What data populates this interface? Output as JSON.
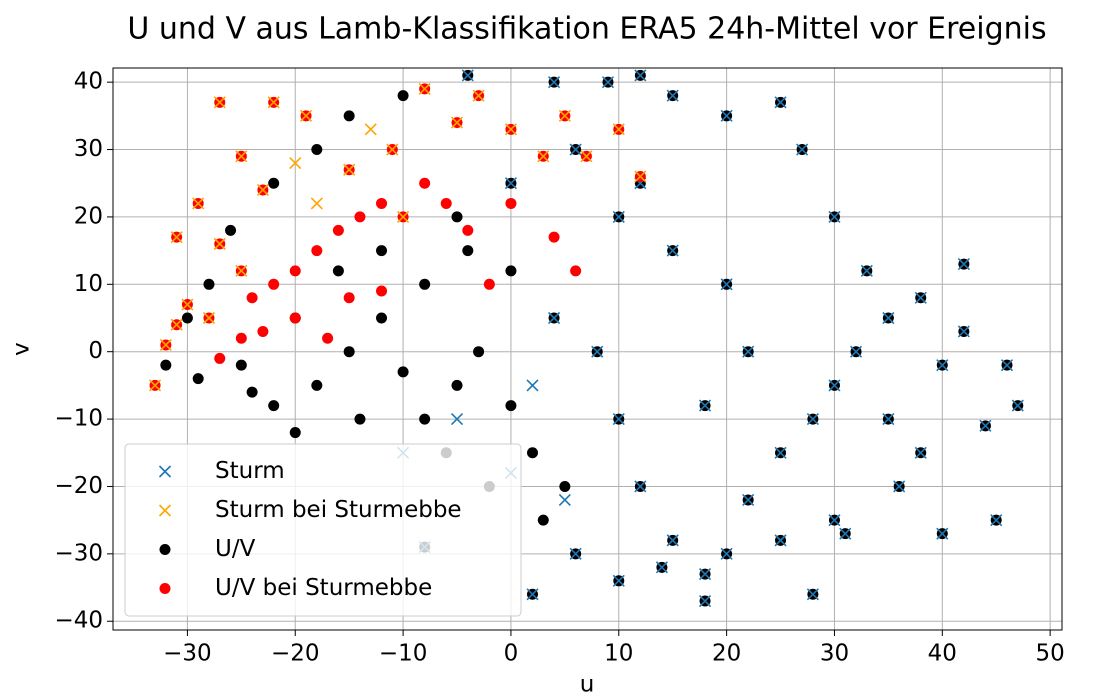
{
  "chart_data": {
    "type": "scatter",
    "title": "U und V aus Lamb-Klassifikation ERA5 24h-Mittel vor Ereignis",
    "xlabel": "u",
    "ylabel": "v",
    "xlim": [
      -36.9,
      51.1
    ],
    "ylim": [
      -41.3,
      42.1
    ],
    "xticks": [
      {
        "value": -30,
        "label": "−30"
      },
      {
        "value": -20,
        "label": "−20"
      },
      {
        "value": -10,
        "label": "−10"
      },
      0,
      10,
      20,
      30,
      40,
      50
    ],
    "yticks": [
      {
        "value": -40,
        "label": "−40"
      },
      {
        "value": -30,
        "label": "−30"
      },
      {
        "value": -20,
        "label": "−20"
      },
      {
        "value": -10,
        "label": "−10"
      },
      0,
      10,
      20,
      30,
      40
    ],
    "grid": true,
    "legend": "lower left",
    "series": [
      {
        "name": "U/V",
        "color": "#000000",
        "marker": "o",
        "x": [
          -25,
          -22,
          -20,
          -18,
          -15,
          -12,
          -10,
          -8,
          -5,
          -3,
          0,
          2,
          5,
          3,
          -2,
          -6,
          -14,
          -20,
          -16,
          -12,
          -8,
          -4,
          0,
          4,
          8,
          10,
          12,
          15,
          18,
          20,
          22,
          25,
          28,
          30,
          32,
          35,
          38,
          40,
          42,
          44,
          47,
          45,
          40,
          36,
          30,
          28,
          18,
          10,
          6,
          14,
          25,
          33,
          30,
          27,
          25,
          20,
          15,
          12,
          9,
          4,
          -4,
          -10,
          -15,
          -18,
          -22,
          -26,
          -28,
          -30,
          -32,
          -29,
          -24,
          10,
          15,
          20,
          22,
          18,
          12,
          6,
          0,
          -5,
          35,
          38,
          42,
          46,
          31,
          -8,
          2
        ],
        "values": [
          -2,
          -8,
          -12,
          -5,
          0,
          5,
          -3,
          -10,
          -5,
          0,
          -8,
          -15,
          -20,
          -25,
          -20,
          -15,
          -10,
          5,
          12,
          15,
          10,
          15,
          12,
          5,
          0,
          -10,
          -20,
          -28,
          -33,
          -30,
          -22,
          -15,
          -10,
          -5,
          0,
          5,
          8,
          -2,
          3,
          -11,
          -8,
          -25,
          -27,
          -20,
          -25,
          -36,
          -37,
          -34,
          -30,
          -32,
          -28,
          12,
          20,
          30,
          37,
          35,
          38,
          41,
          40,
          40,
          41,
          38,
          35,
          30,
          25,
          18,
          10,
          5,
          -2,
          -4,
          -6,
          20,
          15,
          10,
          0,
          -8,
          25,
          30,
          25,
          20,
          -10,
          -15,
          13,
          -2,
          -27,
          -29,
          -36
        ]
      },
      {
        "name": "Sturm",
        "color": "#1f77b4",
        "marker": "x",
        "x": [
          4,
          8,
          10,
          12,
          15,
          18,
          20,
          22,
          25,
          28,
          30,
          32,
          35,
          38,
          40,
          42,
          44,
          47,
          45,
          40,
          36,
          30,
          28,
          18,
          10,
          6,
          14,
          25,
          33,
          30,
          27,
          25,
          20,
          15,
          12,
          9,
          4,
          -4,
          10,
          15,
          20,
          22,
          18,
          12,
          6,
          0,
          35,
          38,
          42,
          46,
          31,
          -8,
          2,
          -10,
          -5,
          0,
          5,
          2
        ],
        "values": [
          5,
          0,
          -10,
          -20,
          -28,
          -33,
          -30,
          -22,
          -15,
          -10,
          -5,
          0,
          5,
          8,
          -2,
          3,
          -11,
          -8,
          -25,
          -27,
          -20,
          -25,
          -36,
          -37,
          -34,
          -30,
          -32,
          -28,
          12,
          20,
          30,
          37,
          35,
          38,
          41,
          40,
          40,
          41,
          20,
          15,
          10,
          0,
          -8,
          25,
          30,
          25,
          -10,
          -15,
          13,
          -2,
          -27,
          -29,
          -36,
          -15,
          -10,
          -18,
          -22,
          -5
        ]
      },
      {
        "name": "U/V bei Sturmebbe",
        "color": "#ff0000",
        "marker": "o",
        "x": [
          -33,
          -32,
          -31,
          -30,
          -28,
          -27,
          -25,
          -24,
          -22,
          -20,
          -18,
          -16,
          -14,
          -12,
          -10,
          -8,
          -6,
          -4,
          -2,
          0,
          4,
          6,
          -12,
          -15,
          -17,
          -20,
          -23,
          -25,
          -27,
          -29,
          -31,
          -27,
          -22,
          -19,
          -8,
          -3,
          5,
          10,
          12,
          7,
          -15,
          -11,
          -23,
          -25,
          -5,
          0,
          3
        ],
        "values": [
          -5,
          1,
          4,
          7,
          5,
          -1,
          2,
          8,
          10,
          12,
          15,
          18,
          20,
          22,
          20,
          25,
          22,
          18,
          10,
          22,
          17,
          12,
          9,
          8,
          2,
          5,
          3,
          12,
          16,
          22,
          17,
          37,
          37,
          35,
          39,
          38,
          35,
          33,
          26,
          29,
          27,
          30,
          24,
          29,
          34,
          33,
          29
        ]
      },
      {
        "name": "Sturm bei Sturmebbe",
        "color": "#ffa500",
        "marker": "x",
        "x": [
          -33,
          -32,
          -31,
          -30,
          -28,
          -25,
          -27,
          -29,
          -31,
          -27,
          -22,
          -19,
          -8,
          -3,
          5,
          10,
          12,
          7,
          -15,
          -11,
          -23,
          -25,
          -5,
          0,
          3,
          -18,
          -10,
          -20,
          -13
        ],
        "values": [
          -5,
          1,
          4,
          7,
          5,
          12,
          16,
          22,
          17,
          37,
          37,
          35,
          39,
          38,
          35,
          33,
          26,
          29,
          27,
          30,
          24,
          29,
          34,
          33,
          29,
          22,
          20,
          28,
          33
        ]
      }
    ]
  }
}
